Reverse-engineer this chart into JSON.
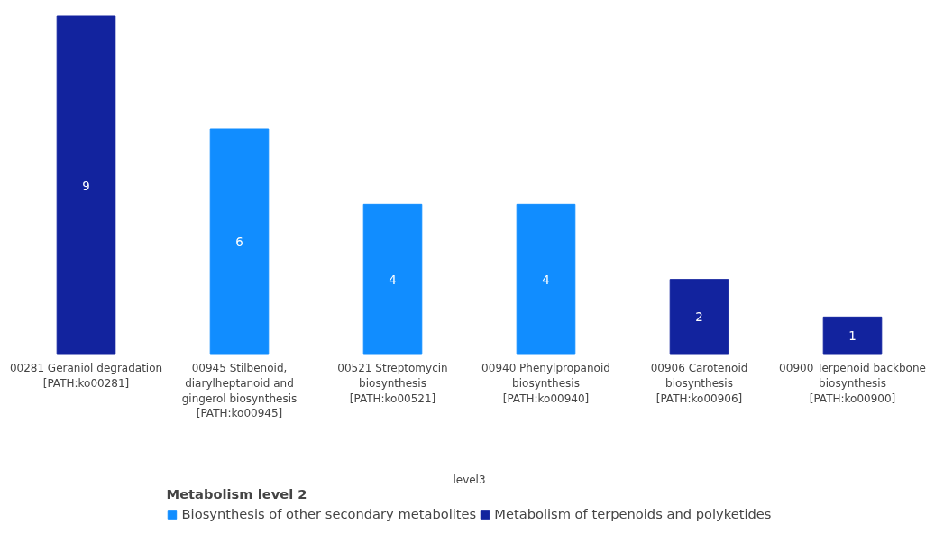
{
  "chart_data": {
    "type": "bar",
    "xlabel": "level3",
    "legend_title": "Metabolism level 2",
    "legend": "bottom",
    "data_labels": true,
    "categories": [
      "00281 Geraniol degradation [PATH:ko00281]",
      "00945 Stilbenoid, diarylheptanoid and gingerol biosynthesis [PATH:ko00945]",
      "00521 Streptomycin biosynthesis [PATH:ko00521]",
      "00940 Phenylpropanoid biosynthesis [PATH:ko00940]",
      "00906 Carotenoid biosynthesis [PATH:ko00906]",
      "00900 Terpenoid backbone biosynthesis [PATH:ko00900]"
    ],
    "series": [
      {
        "name": "Biosynthesis of other secondary metabolites",
        "color": "#118dff",
        "values": [
          null,
          6,
          4,
          4,
          null,
          null
        ]
      },
      {
        "name": "Metabolism of terpenoids and polyketides",
        "color": "#12239e",
        "values": [
          9,
          null,
          null,
          null,
          2,
          1
        ]
      }
    ]
  }
}
